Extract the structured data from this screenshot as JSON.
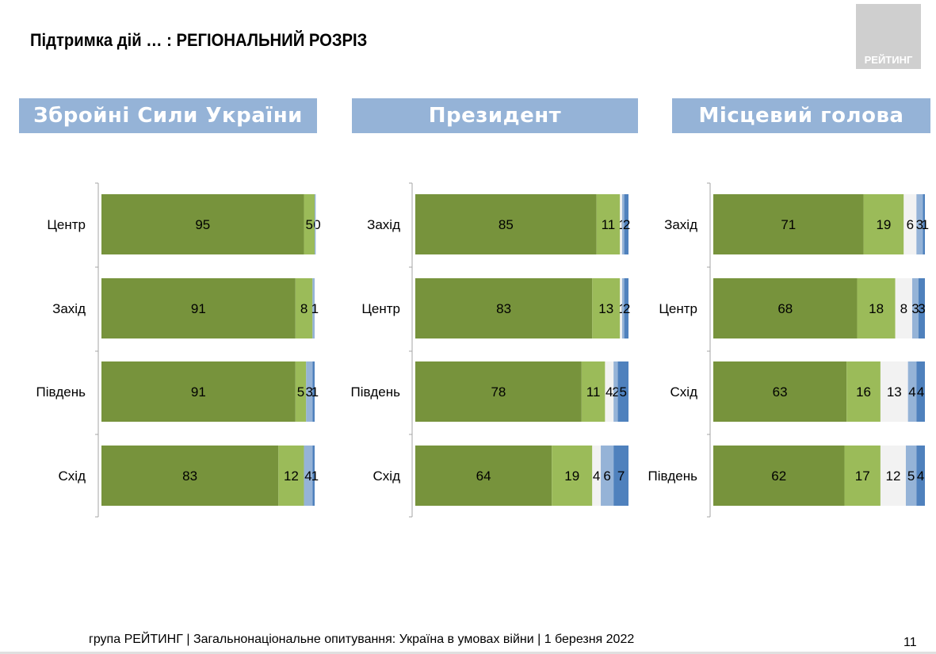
{
  "page": {
    "title": "Підтримка дій … : РЕГІОНАЛЬНИЙ РОЗРІЗ",
    "logo_text": "РЕЙТИНГ",
    "footer": "група РЕЙТИНГ | Загальнонаціональне опитування: Україна в умовах війни | 1 березня 2022",
    "page_number": "11"
  },
  "colors": {
    "segments": [
      "#77933c",
      "#9bbb59",
      "#f2f2f2",
      "#95b3d7",
      "#4f81bd"
    ],
    "header_bg": "#95b3d7",
    "axis": "#a6a6a6"
  },
  "chart_data": [
    {
      "type": "bar",
      "orientation": "horizontal",
      "stacked": true,
      "title": "Збройні Сили України",
      "categories": [
        "Центр",
        "Захід",
        "Південь",
        "Схід"
      ],
      "series": [
        {
          "values": [
            95,
            91,
            91,
            83
          ],
          "labels": [
            "95",
            "91",
            "91",
            "83"
          ]
        },
        {
          "values": [
            5,
            8,
            5,
            12
          ],
          "labels": [
            "5",
            "8",
            "5",
            "12"
          ]
        },
        {
          "values": [
            0,
            0,
            0,
            0
          ],
          "labels": [
            "0",
            "",
            "",
            ""
          ]
        },
        {
          "values": [
            0.5,
            1,
            3,
            4
          ],
          "labels": [
            "",
            "1",
            "3",
            "4"
          ]
        },
        {
          "values": [
            0,
            0,
            1,
            1
          ],
          "labels": [
            "",
            "",
            "1",
            "1"
          ]
        }
      ],
      "xlim": [
        0,
        100
      ]
    },
    {
      "type": "bar",
      "orientation": "horizontal",
      "stacked": true,
      "title": "Президент",
      "categories": [
        "Захід",
        "Центр",
        "Південь",
        "Схід"
      ],
      "series": [
        {
          "values": [
            85,
            83,
            78,
            64
          ],
          "labels": [
            "85",
            "83",
            "78",
            "64"
          ]
        },
        {
          "values": [
            11,
            13,
            11,
            19
          ],
          "labels": [
            "11",
            "13",
            "11",
            "19"
          ]
        },
        {
          "values": [
            1,
            1,
            4,
            4
          ],
          "labels": [
            "1",
            "1",
            "4",
            "4"
          ]
        },
        {
          "values": [
            1,
            1,
            2,
            6
          ],
          "labels": [
            "",
            "",
            "2",
            "6"
          ]
        },
        {
          "values": [
            2,
            2,
            5,
            7
          ],
          "labels": [
            "2",
            "2",
            "5",
            "7"
          ]
        }
      ],
      "xlim": [
        0,
        100
      ]
    },
    {
      "type": "bar",
      "orientation": "horizontal",
      "stacked": true,
      "title": "Місцевий голова",
      "categories": [
        "Захід",
        "Центр",
        "Схід",
        "Південь"
      ],
      "series": [
        {
          "values": [
            71,
            68,
            63,
            62
          ],
          "labels": [
            "71",
            "68",
            "63",
            "62"
          ]
        },
        {
          "values": [
            19,
            18,
            16,
            17
          ],
          "labels": [
            "19",
            "18",
            "16",
            "17"
          ]
        },
        {
          "values": [
            6,
            8,
            13,
            12
          ],
          "labels": [
            "6",
            "8",
            "13",
            "12"
          ]
        },
        {
          "values": [
            3,
            3,
            4,
            5
          ],
          "labels": [
            "3",
            "3",
            "4",
            "5"
          ]
        },
        {
          "values": [
            1,
            3,
            4,
            4
          ],
          "labels": [
            "1",
            "3",
            "4",
            "4"
          ]
        }
      ],
      "xlim": [
        0,
        100
      ]
    }
  ]
}
